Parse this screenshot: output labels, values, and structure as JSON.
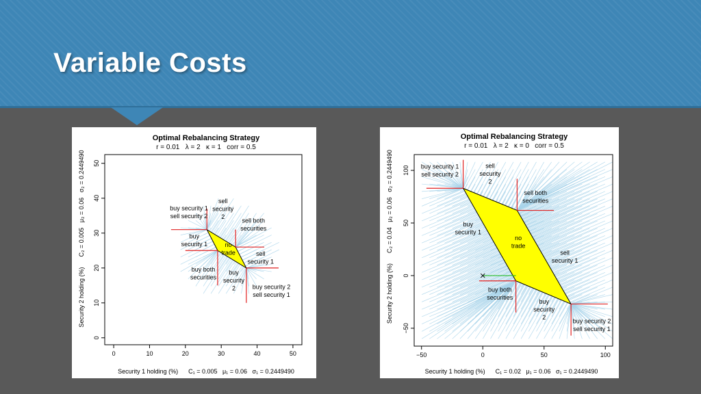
{
  "slide": {
    "title": "Variable Costs",
    "colors": {
      "banner": "#3e86b6",
      "background": "#595959",
      "region_fill": "#ffff00",
      "boundary": "#e02020",
      "arrows": "#a9d4ea",
      "path": "#22bb22"
    }
  },
  "chart_data": [
    {
      "type": "scatter",
      "title": "Optimal Rebalancing Strategy",
      "subtitle": "r = 0.01   λ = 2   κ = 1   corr = 0.5",
      "xlabel": "Security 1 holding (%)      C₁ = 0.005   μ₁ = 0.06   σ₁ = 0.2449490",
      "ylabel": "Security 2 holding (%)      C₂ = 0.005   μ₂ = 0.06   σ₂ = 0.2449490",
      "xlim": [
        -2.5,
        52.5
      ],
      "ylim": [
        -2,
        52.5
      ],
      "xticks": [
        "0",
        "10",
        "20",
        "30",
        "40",
        "50"
      ],
      "yticks": [
        "0",
        "10",
        "20",
        "30",
        "40",
        "50"
      ],
      "no_trade_region": [
        [
          26,
          31
        ],
        [
          34,
          26
        ],
        [
          37,
          20
        ],
        [
          29,
          25
        ]
      ],
      "boundary_lines": [
        [
          [
            26,
            31
          ],
          [
            26,
            37
          ]
        ],
        [
          [
            26,
            31
          ],
          [
            16,
            31
          ]
        ],
        [
          [
            34,
            26
          ],
          [
            34,
            31
          ]
        ],
        [
          [
            34,
            26
          ],
          [
            42,
            26
          ]
        ],
        [
          [
            37,
            20
          ],
          [
            37,
            10
          ]
        ],
        [
          [
            37,
            20
          ],
          [
            46,
            20
          ]
        ],
        [
          [
            29,
            25
          ],
          [
            29,
            15
          ]
        ],
        [
          [
            29,
            25
          ],
          [
            20,
            25
          ]
        ]
      ],
      "region_labels": [
        {
          "text": [
            "buy security 1",
            "sell security 2"
          ],
          "x": 21,
          "y": 36
        },
        {
          "text": [
            "sell",
            "security",
            "2"
          ],
          "x": 30.5,
          "y": 37
        },
        {
          "text": [
            "sell both",
            "securities"
          ],
          "x": 39,
          "y": 32.5
        },
        {
          "text": [
            "buy",
            "security 1"
          ],
          "x": 22.5,
          "y": 28
        },
        {
          "text": [
            "no",
            "trade"
          ],
          "x": 32,
          "y": 25.5
        },
        {
          "text": [
            "sell",
            "security 1"
          ],
          "x": 41,
          "y": 23
        },
        {
          "text": [
            "buy both",
            "securities"
          ],
          "x": 25,
          "y": 18.5
        },
        {
          "text": [
            "buy",
            "security",
            "2"
          ],
          "x": 33.5,
          "y": 16.5
        },
        {
          "text": [
            "buy security 2",
            "sell security 1"
          ],
          "x": 44,
          "y": 13.5
        }
      ]
    },
    {
      "type": "scatter",
      "title": "Optimal Rebalancing Strategy",
      "subtitle": "r = 0.01   λ = 2   κ = 0   corr = 0.5",
      "xlabel": "Security 1 holding (%)      C₁ = 0.02   μ₁ = 0.06   σ₁ = 0.2449490",
      "ylabel": "Security 2 holding (%)      C₂ = 0.04   μ₂ = 0.06   σ₂ = 0.2449490",
      "xlim": [
        -56,
        106
      ],
      "ylim": [
        -67,
        115
      ],
      "xticks": [
        "−50",
        "0",
        "50",
        "100"
      ],
      "yticks": [
        "−50",
        "0",
        "50",
        "100"
      ],
      "no_trade_region": [
        [
          -16,
          83
        ],
        [
          28,
          62
        ],
        [
          72,
          -27
        ],
        [
          27,
          -5
        ]
      ],
      "boundary_lines": [
        [
          [
            -16,
            83
          ],
          [
            -16,
            110
          ]
        ],
        [
          [
            -16,
            83
          ],
          [
            -46,
            83
          ]
        ],
        [
          [
            28,
            62
          ],
          [
            28,
            92
          ]
        ],
        [
          [
            28,
            62
          ],
          [
            58,
            62
          ]
        ],
        [
          [
            72,
            -27
          ],
          [
            72,
            -57
          ]
        ],
        [
          [
            72,
            -27
          ],
          [
            102,
            -27
          ]
        ],
        [
          [
            27,
            -5
          ],
          [
            27,
            -35
          ]
        ],
        [
          [
            27,
            -5
          ],
          [
            -3,
            -5
          ]
        ]
      ],
      "path": {
        "start": [
          0,
          0
        ],
        "end": [
          27,
          0
        ]
      },
      "region_labels": [
        {
          "text": [
            "buy security 1",
            "sell security 2"
          ],
          "x": -35,
          "y": 100
        },
        {
          "text": [
            "sell",
            "security",
            "2"
          ],
          "x": 6,
          "y": 97
        },
        {
          "text": [
            "sell both",
            "securities"
          ],
          "x": 43,
          "y": 75
        },
        {
          "text": [
            "buy",
            "security 1"
          ],
          "x": -12,
          "y": 45
        },
        {
          "text": [
            "no",
            "trade"
          ],
          "x": 29,
          "y": 32
        },
        {
          "text": [
            "sell",
            "security 1"
          ],
          "x": 67,
          "y": 18
        },
        {
          "text": [
            "buy both",
            "securities"
          ],
          "x": 14,
          "y": -17
        },
        {
          "text": [
            "buy",
            "security",
            "2"
          ],
          "x": 50,
          "y": -32
        },
        {
          "text": [
            "buy security 2",
            "sell security 1"
          ],
          "x": 89,
          "y": -47
        }
      ]
    }
  ]
}
